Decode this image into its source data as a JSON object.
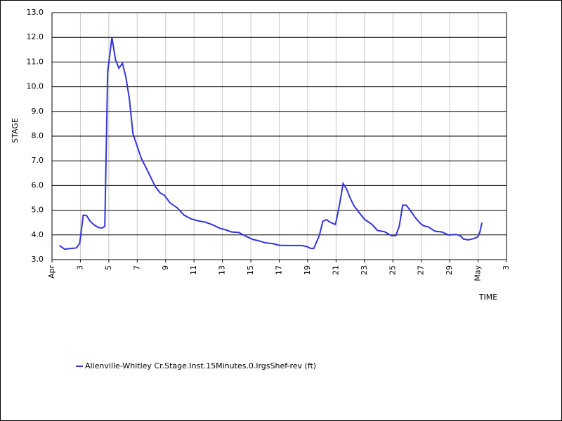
{
  "chart_data": {
    "type": "line",
    "y_label": "STAGE",
    "x_label": "TIME",
    "x": [
      0.52,
      0.91,
      1.31,
      1.7,
      1.95,
      2.2,
      2.44,
      2.69,
      2.98,
      3.28,
      3.53,
      3.72,
      3.92,
      4.22,
      4.47,
      4.71,
      4.96,
      5.2,
      5.45,
      5.7,
      5.99,
      6.29,
      6.64,
      6.98,
      7.28,
      7.62,
      7.92,
      8.31,
      8.81,
      9.3,
      9.79,
      10.29,
      10.78,
      11.27,
      11.77,
      12.26,
      12.65,
      13.15,
      13.64,
      14.13,
      14.63,
      15.02,
      15.52,
      16.01,
      16.6,
      17.1,
      17.59,
      17.98,
      18.23,
      18.43,
      18.82,
      19.07,
      19.32,
      19.56,
      19.96,
      20.25,
      20.5,
      20.75,
      20.99,
      21.24,
      21.63,
      22.03,
      22.52,
      22.92,
      23.41,
      23.9,
      24.2,
      24.45,
      24.69,
      24.94,
      25.19,
      25.58,
      25.93,
      26.17,
      26.52,
      26.96,
      27.46,
      27.9,
      28.44,
      28.74,
      28.98,
      29.33,
      29.68,
      29.97,
      30.12,
      30.27
    ],
    "series": [
      {
        "name": "Allenville-Whitley Cr.Stage.Inst.15Minutes.0.lrgsShef-rev (ft)",
        "color": "#3333dd",
        "values": [
          3.57,
          3.42,
          3.45,
          3.47,
          3.65,
          4.8,
          4.78,
          4.55,
          4.4,
          4.3,
          4.28,
          4.35,
          10.6,
          12.0,
          11.1,
          10.75,
          10.95,
          10.4,
          9.5,
          8.1,
          7.6,
          7.1,
          6.7,
          6.3,
          5.95,
          5.7,
          5.6,
          5.3,
          5.1,
          4.8,
          4.65,
          4.57,
          4.52,
          4.42,
          4.28,
          4.2,
          4.12,
          4.1,
          3.95,
          3.82,
          3.75,
          3.68,
          3.65,
          3.58,
          3.57,
          3.57,
          3.57,
          3.52,
          3.45,
          3.45,
          3.97,
          4.55,
          4.62,
          4.52,
          4.42,
          5.25,
          6.08,
          5.85,
          5.5,
          5.2,
          4.9,
          4.62,
          4.43,
          4.18,
          4.13,
          3.97,
          3.97,
          4.35,
          5.2,
          5.2,
          5.02,
          4.7,
          4.47,
          4.37,
          4.32,
          4.15,
          4.12,
          4.0,
          4.02,
          3.97,
          3.83,
          3.8,
          3.85,
          3.92,
          4.1,
          4.5
        ]
      }
    ],
    "xlim": [
      0,
      32
    ],
    "xticks": [
      {
        "value": 0,
        "label": "Apr"
      },
      {
        "value": 2,
        "label": "3"
      },
      {
        "value": 4,
        "label": "5"
      },
      {
        "value": 6,
        "label": "7"
      },
      {
        "value": 8,
        "label": "9"
      },
      {
        "value": 10,
        "label": "11"
      },
      {
        "value": 12,
        "label": "13"
      },
      {
        "value": 14,
        "label": "15"
      },
      {
        "value": 16,
        "label": "17"
      },
      {
        "value": 18,
        "label": "19"
      },
      {
        "value": 20,
        "label": "21"
      },
      {
        "value": 22,
        "label": "23"
      },
      {
        "value": 24,
        "label": "25"
      },
      {
        "value": 26,
        "label": "27"
      },
      {
        "value": 28,
        "label": "29"
      },
      {
        "value": 30,
        "label": "May"
      },
      {
        "value": 32,
        "label": "3"
      }
    ],
    "ylim": [
      3,
      13
    ],
    "yticks": [
      {
        "value": 3,
        "label": "3.0"
      },
      {
        "value": 4,
        "label": "4.0"
      },
      {
        "value": 5,
        "label": "5.0"
      },
      {
        "value": 6,
        "label": "6.0"
      },
      {
        "value": 7,
        "label": "7.0"
      },
      {
        "value": 8,
        "label": "8.0"
      },
      {
        "value": 9,
        "label": "9.0"
      },
      {
        "value": 10,
        "label": "10.0"
      },
      {
        "value": 11,
        "label": "11.0"
      },
      {
        "value": 12,
        "label": "12.0"
      },
      {
        "value": 13,
        "label": "13.0"
      }
    ],
    "grid": true
  }
}
